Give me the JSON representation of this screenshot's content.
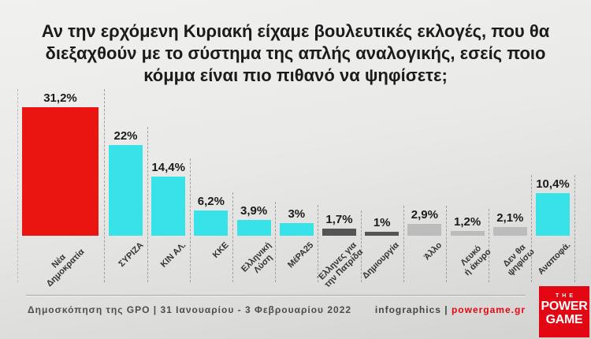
{
  "title": "Αν την ερχόμενη Κυριακή είχαμε βουλευτικές εκλογές, που θα\nδιεξαχθούν με το σύστημα της απλής αναλογικής, εσείς ποιο\nκόμμα είναι πιο πιθανό να ψηφίσετε;",
  "chart_data": {
    "type": "bar",
    "title": "Αν την ερχόμενη Κυριακή είχαμε βουλευτικές εκλογές, που θα διεξαχθούν με το σύστημα της απλής αναλογικής, εσείς ποιο κόμμα είναι πιο πιθανό να ψηφίσετε;",
    "categories": [
      "Νέα\nΔημοκρατία",
      "ΣΥΡΙΖΑ",
      "ΚΙΝ ΑΛ.",
      "ΚΚΕ",
      "Ελληνική\nΛύση",
      "ΜέΡΑ25",
      "Έλληνες για\nτην Πατρίδα",
      "Δημιουργία",
      "Άλλο",
      "Λευκό\nή άκυρο",
      "Δεν θα\nψηφίσω",
      "Αναποφά."
    ],
    "values": [
      31.2,
      22,
      14.4,
      6.2,
      3.9,
      3,
      1.7,
      1,
      2.9,
      1.2,
      2.1,
      10.4
    ],
    "value_labels": [
      "31,2%",
      "22%",
      "14,4%",
      "6,2%",
      "3,9%",
      "3%",
      "1,7%",
      "1%",
      "2,9%",
      "1,2%",
      "2,1%",
      "10,4%"
    ],
    "bar_colors": [
      "red",
      "cyan",
      "cyan",
      "cyan",
      "cyan",
      "cyan",
      "dark_gray",
      "dark_gray",
      "light_gray",
      "light_gray",
      "light_gray",
      "cyan"
    ],
    "ylim": [
      0,
      33
    ],
    "grid": false,
    "legend": false,
    "value_suffix": "%"
  },
  "colors": {
    "red": "#ea1511",
    "cyan": "#38e2e9",
    "dark_gray": "#555555",
    "light_gray": "#bcbcbc",
    "brand_red": "#e30613"
  },
  "footer": {
    "source": "Δημοσκόπηση της GPO | 31 Ιανουαρίου - 3 Φεβρουαρίου 2022",
    "credit_label": "infographics",
    "credit_separator": " | ",
    "credit_site": "powergame.gr"
  },
  "logo": {
    "line1": "THE",
    "line2": "POWER",
    "line3": "GAME"
  }
}
